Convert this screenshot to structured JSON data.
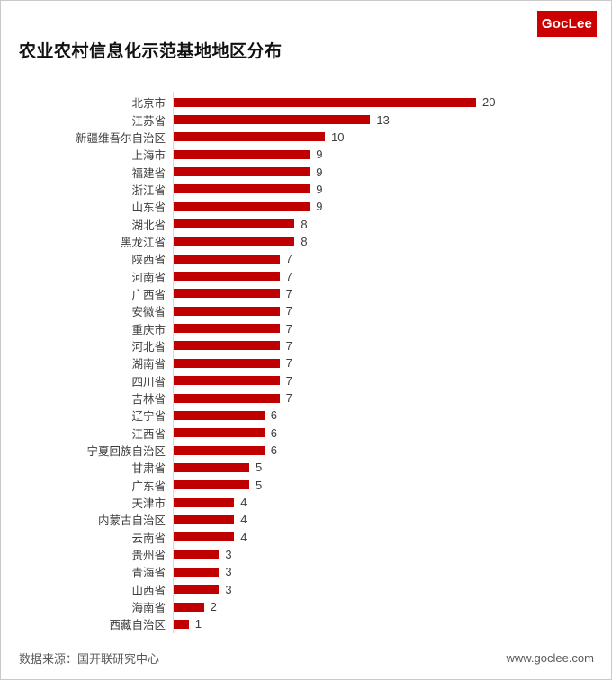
{
  "header": {
    "title": "农业农村信息化示范基地地区分布",
    "logo_text": "GocLee"
  },
  "footer": {
    "source": "数据来源：国开联研究中心",
    "website": "www.goclee.com"
  },
  "colors": {
    "bar": "#C00000",
    "logo_bg": "#CC0000",
    "axis_line": "#d9d9d9",
    "label_text": "#3d3d3d",
    "footer_text": "#595959"
  },
  "chart_data": {
    "type": "bar",
    "orientation": "horizontal",
    "title": "农业农村信息化示范基地地区分布",
    "categories": [
      "北京市",
      "江苏省",
      "新疆维吾尔自治区",
      "上海市",
      "福建省",
      "浙江省",
      "山东省",
      "湖北省",
      "黑龙江省",
      "陕西省",
      "河南省",
      "广西省",
      "安徽省",
      "重庆市",
      "河北省",
      "湖南省",
      "四川省",
      "吉林省",
      "辽宁省",
      "江西省",
      "宁夏回族自治区",
      "甘肃省",
      "广东省",
      "天津市",
      "内蒙古自治区",
      "云南省",
      "贵州省",
      "青海省",
      "山西省",
      "海南省",
      "西藏自治区"
    ],
    "values": [
      20,
      13,
      10,
      9,
      9,
      9,
      9,
      8,
      8,
      7,
      7,
      7,
      7,
      7,
      7,
      7,
      7,
      7,
      6,
      6,
      6,
      5,
      5,
      4,
      4,
      4,
      3,
      3,
      3,
      2,
      1
    ],
    "xlim": [
      0,
      20
    ],
    "grid": false,
    "legend": false,
    "data_labels": true,
    "bar_color": "#C00000"
  }
}
